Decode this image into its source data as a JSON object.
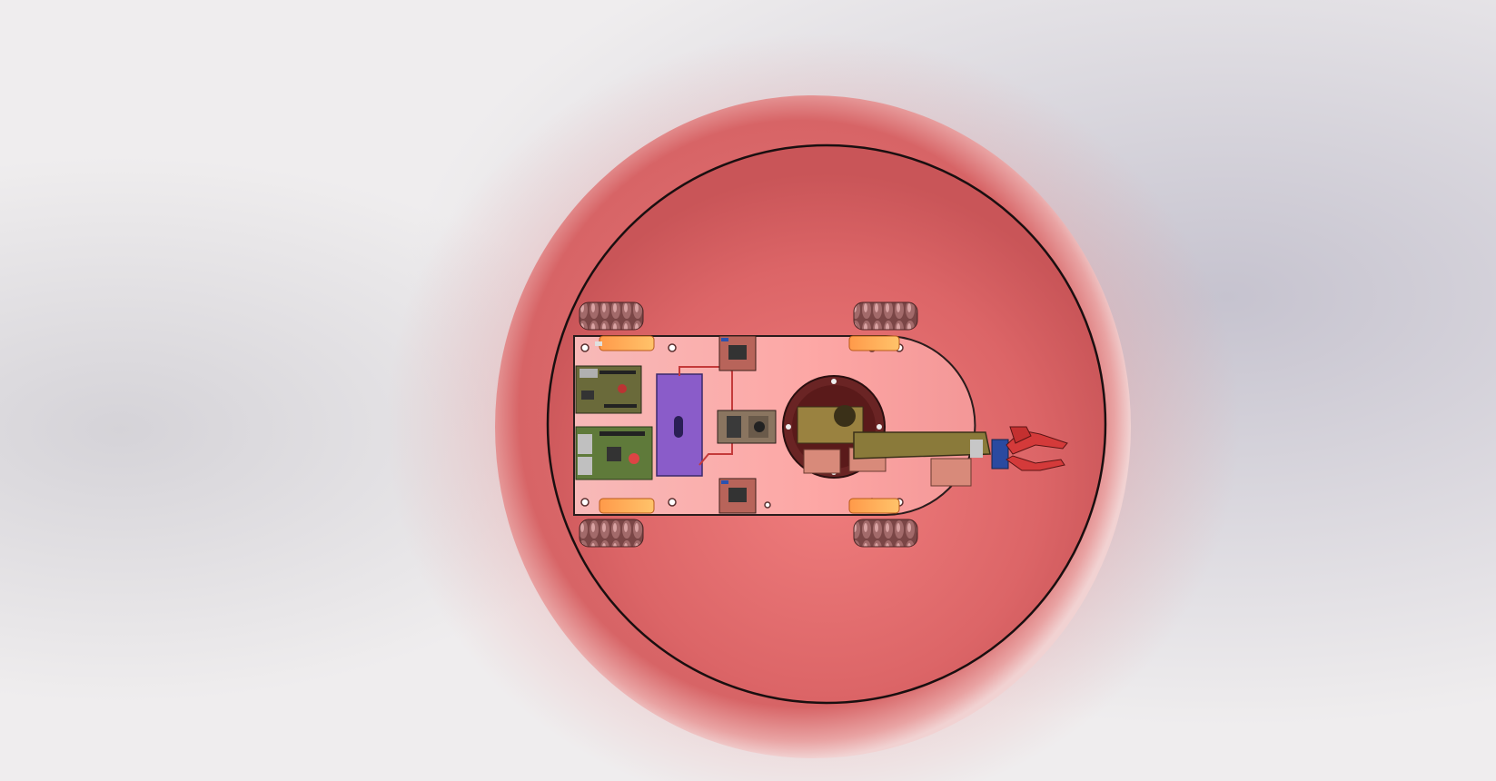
{
  "scene": {
    "subject": "robot-in-sphere-render",
    "colors": {
      "backdrop_light": "#f2f0f0",
      "backdrop_haze": "#c9c7d2",
      "shell_outer": "#e99a9a",
      "shell_mid": "#d96a6c",
      "shell_inner": "#e88384",
      "rim_line": "#1a0f10",
      "chassis_plate": "#f7a9a9",
      "chassis_edge": "#2a1c1c",
      "wheel": "#6e3a3a",
      "motor": "#ff8a3d",
      "battery": "#8a5cc9",
      "controller_board": "#3a5a3a",
      "driver_board": "#b8645a",
      "turntable": "#5a2020",
      "arm": "#8a7a3a",
      "gripper": "#d43a3a",
      "servo": "#2a4aa0"
    }
  }
}
